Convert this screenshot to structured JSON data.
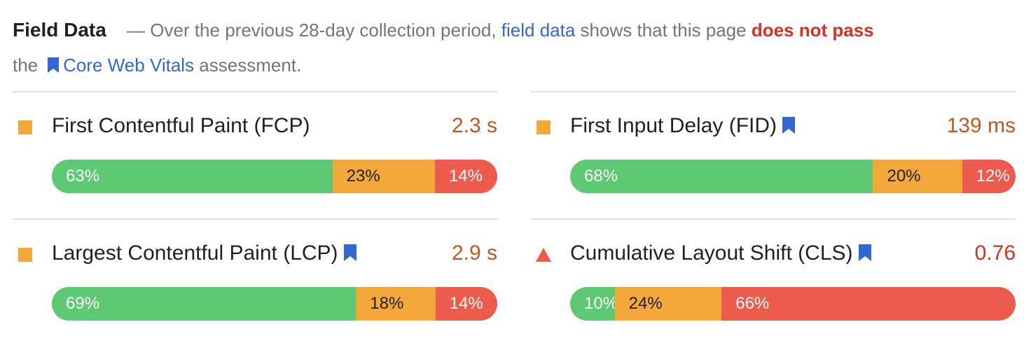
{
  "intro": {
    "title": "Field Data",
    "dash_text": "— Over the previous 28-day collection period,",
    "field_data_link": "field data",
    "shows_text": "shows that this page",
    "verdict": "does not pass",
    "the_text": "the",
    "cwv_link": "Core Web Vitals",
    "assessment_text": "assessment."
  },
  "colors": {
    "good": "#5dca73",
    "needs_improvement": "#f4a83a",
    "poor": "#ec5b4c",
    "link": "#3367d6",
    "fail_text": "#d93025",
    "value_average": "#c5561f"
  },
  "metrics": [
    {
      "name": "First Contentful Paint (FCP)",
      "core_web_vital": false,
      "value": "2.3 s",
      "rating": "average",
      "indicator": "orange-square-icon",
      "distribution": [
        {
          "label": "63%",
          "value": 63
        },
        {
          "label": "23%",
          "value": 23
        },
        {
          "label": "14%",
          "value": 14
        }
      ]
    },
    {
      "name": "First Input Delay (FID)",
      "core_web_vital": true,
      "value": "139 ms",
      "rating": "average",
      "indicator": "orange-square-icon",
      "distribution": [
        {
          "label": "68%",
          "value": 68
        },
        {
          "label": "20%",
          "value": 20
        },
        {
          "label": "12%",
          "value": 12
        }
      ]
    },
    {
      "name": "Largest Contentful Paint (LCP)",
      "core_web_vital": true,
      "value": "2.9 s",
      "rating": "average",
      "indicator": "orange-square-icon",
      "distribution": [
        {
          "label": "69%",
          "value": 69
        },
        {
          "label": "18%",
          "value": 18
        },
        {
          "label": "14%",
          "value": 14
        }
      ]
    },
    {
      "name": "Cumulative Layout Shift (CLS)",
      "core_web_vital": true,
      "value": "0.76",
      "rating": "poor",
      "indicator": "red-triangle-icon",
      "distribution": [
        {
          "label": "10%",
          "value": 10
        },
        {
          "label": "24%",
          "value": 24
        },
        {
          "label": "66%",
          "value": 66
        }
      ]
    }
  ]
}
